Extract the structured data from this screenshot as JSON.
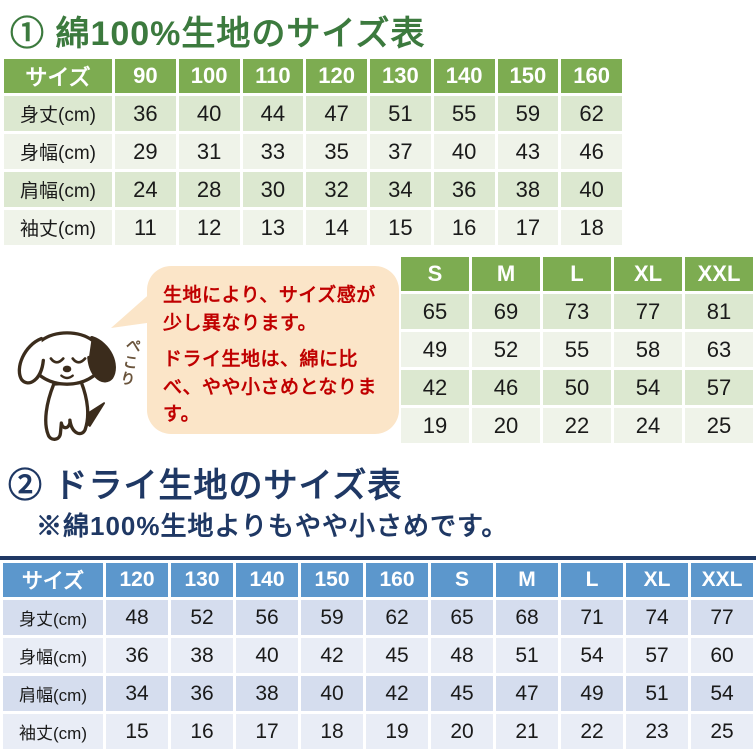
{
  "section1": {
    "title": "① 綿100%生地のサイズ表",
    "cotton_table": {
      "header": [
        "サイズ",
        "90",
        "100",
        "110",
        "120",
        "130",
        "140",
        "150",
        "160"
      ],
      "rows": [
        {
          "label": "身丈(cm)",
          "values": [
            36,
            40,
            44,
            47,
            51,
            55,
            59,
            62
          ]
        },
        {
          "label": "身幅(cm)",
          "values": [
            29,
            31,
            33,
            35,
            37,
            40,
            43,
            46
          ]
        },
        {
          "label": "肩幅(cm)",
          "values": [
            24,
            28,
            30,
            32,
            34,
            36,
            38,
            40
          ]
        },
        {
          "label": "袖丈(cm)",
          "values": [
            11,
            12,
            13,
            14,
            15,
            16,
            17,
            18
          ]
        }
      ]
    },
    "adult_table": {
      "header": [
        "S",
        "M",
        "L",
        "XL",
        "XXL"
      ],
      "rows": [
        {
          "values": [
            65,
            69,
            73,
            77,
            81
          ]
        },
        {
          "values": [
            49,
            52,
            55,
            58,
            63
          ]
        },
        {
          "values": [
            42,
            46,
            50,
            54,
            57
          ]
        },
        {
          "values": [
            19,
            20,
            22,
            24,
            25
          ]
        }
      ]
    }
  },
  "callout": {
    "line1": "生地により、サイズ感が少し異なります。",
    "line2": "ドライ生地は、綿に比べ、やや小さめとなります。",
    "mascot_caption": "ぺこり"
  },
  "section2": {
    "title": "② ドライ生地のサイズ表",
    "note": "※綿100%生地よりもやや小さめです。",
    "dry_table": {
      "header": [
        "サイズ",
        "120",
        "130",
        "140",
        "150",
        "160",
        "S",
        "M",
        "L",
        "XL",
        "XXL"
      ],
      "rows": [
        {
          "label": "身丈(cm)",
          "values": [
            48,
            52,
            56,
            59,
            62,
            65,
            68,
            71,
            74,
            77
          ]
        },
        {
          "label": "身幅(cm)",
          "values": [
            36,
            38,
            40,
            42,
            45,
            48,
            51,
            54,
            57,
            60
          ]
        },
        {
          "label": "肩幅(cm)",
          "values": [
            34,
            36,
            38,
            40,
            42,
            45,
            47,
            49,
            51,
            54
          ]
        },
        {
          "label": "袖丈(cm)",
          "values": [
            15,
            16,
            17,
            18,
            19,
            20,
            21,
            22,
            23,
            25
          ]
        }
      ]
    }
  },
  "colors": {
    "green_title": "#3c7a3e",
    "green_header": "#7dac51",
    "green_row_dark": "#dce8d0",
    "green_row_light": "#eff3e9",
    "navy": "#1f3864",
    "blue_header": "#5c97cc",
    "blue_row_dark": "#d5ddee",
    "blue_row_light": "#e9edf6",
    "callout_bg": "#fbe5c8",
    "callout_text": "#c00000"
  }
}
